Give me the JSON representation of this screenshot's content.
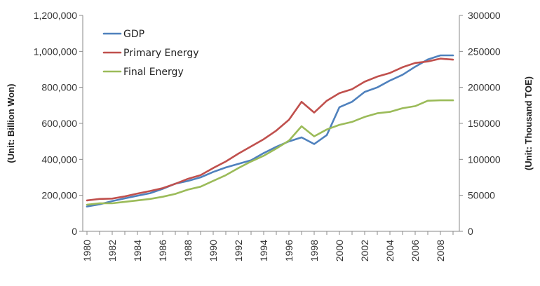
{
  "chart_data": {
    "type": "line",
    "x": [
      1980,
      1981,
      1982,
      1983,
      1984,
      1985,
      1986,
      1987,
      1988,
      1989,
      1990,
      1991,
      1992,
      1993,
      1994,
      1995,
      1996,
      1997,
      1998,
      1999,
      2000,
      2001,
      2002,
      2003,
      2004,
      2005,
      2006,
      2007,
      2008,
      2009
    ],
    "left_axis": {
      "label": "(Unit: Billion Won)",
      "ylim": [
        0,
        1200000
      ],
      "ticks": [
        0,
        200000,
        400000,
        600000,
        800000,
        1000000,
        1200000
      ],
      "tick_labels": [
        "0",
        "200,000",
        "400,000",
        "600,000",
        "800,000",
        "1,000,000",
        "1,200,000"
      ]
    },
    "right_axis": {
      "label": "(Unit: Thousand TOE)",
      "ylim": [
        0,
        300000
      ],
      "ticks": [
        0,
        50000,
        100000,
        150000,
        200000,
        250000,
        300000
      ],
      "tick_labels": [
        "0",
        "50000",
        "100000",
        "150000",
        "200000",
        "250000",
        "300000"
      ]
    },
    "x_ticks": [
      1980,
      1982,
      1984,
      1986,
      1988,
      1990,
      1992,
      1994,
      1996,
      1998,
      2000,
      2002,
      2004,
      2006,
      2008
    ],
    "x_tick_labels": [
      "1980",
      "1982",
      "1984",
      "1986",
      "1988",
      "1990",
      "1992",
      "1994",
      "1996",
      "1998",
      "2000",
      "2002",
      "2004",
      "2006",
      "2008"
    ],
    "series": [
      {
        "name": "GDP",
        "axis": "left",
        "color": "#4F81BD",
        "values": [
          138000,
          150000,
          168000,
          183000,
          198000,
          212000,
          236000,
          265000,
          280000,
          300000,
          330000,
          355000,
          375000,
          395000,
          435000,
          470000,
          500000,
          522000,
          485000,
          535000,
          690000,
          720000,
          775000,
          800000,
          838000,
          870000,
          915000,
          955000,
          978000,
          978000
        ]
      },
      {
        "name": "Primary Energy",
        "axis": "right",
        "color": "#C0504D",
        "values": [
          43000,
          45000,
          45500,
          48500,
          52500,
          56000,
          60000,
          66000,
          73000,
          78000,
          88000,
          97000,
          108000,
          118000,
          128000,
          140000,
          155000,
          180000,
          165000,
          181500,
          192000,
          197500,
          208000,
          215000,
          220000,
          228000,
          234000,
          236000,
          240000,
          238500
        ]
      },
      {
        "name": "Final Energy",
        "axis": "right",
        "color": "#9BBB59",
        "values": [
          37000,
          39000,
          39000,
          41000,
          43000,
          45000,
          48000,
          52000,
          58000,
          62000,
          70000,
          78000,
          88000,
          97000,
          105000,
          115000,
          126000,
          146000,
          132000,
          141500,
          148000,
          152000,
          159000,
          164000,
          166000,
          171000,
          174000,
          181500,
          182000,
          182000
        ]
      }
    ],
    "legend": "top-left",
    "grid": false
  }
}
